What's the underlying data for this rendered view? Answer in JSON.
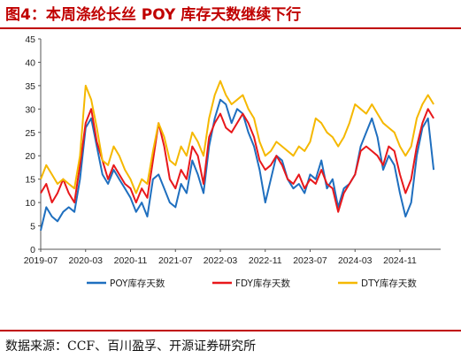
{
  "title": "图4：本周涤纶长丝 POY 库存天数继续下行",
  "source": "数据来源：CCF、百川盈孚、开源证券研究所",
  "chart_data": {
    "type": "line",
    "ylim": [
      0,
      45
    ],
    "yticks": [
      0,
      5,
      10,
      15,
      20,
      25,
      30,
      35,
      40,
      45
    ],
    "xticks": [
      "2019-07",
      "2020-03",
      "2020-11",
      "2021-07",
      "2022-03",
      "2022-11",
      "2023-07",
      "2024-03",
      "2024-11"
    ],
    "legend_position": "bottom",
    "series": [
      {
        "name": "POY库存天数",
        "color": "#1f6fbf",
        "points": [
          [
            "2019-07",
            4
          ],
          [
            "2019-08",
            9
          ],
          [
            "2019-09",
            7
          ],
          [
            "2019-10",
            6
          ],
          [
            "2019-11",
            8
          ],
          [
            "2019-12",
            9
          ],
          [
            "2020-01",
            8
          ],
          [
            "2020-02",
            15
          ],
          [
            "2020-03",
            26
          ],
          [
            "2020-04",
            28
          ],
          [
            "2020-05",
            22
          ],
          [
            "2020-06",
            16
          ],
          [
            "2020-07",
            14
          ],
          [
            "2020-08",
            17
          ],
          [
            "2020-09",
            15
          ],
          [
            "2020-10",
            13
          ],
          [
            "2020-11",
            11
          ],
          [
            "2020-12",
            8
          ],
          [
            "2021-01",
            10
          ],
          [
            "2021-02",
            7
          ],
          [
            "2021-03",
            15
          ],
          [
            "2021-04",
            16
          ],
          [
            "2021-05",
            13
          ],
          [
            "2021-06",
            10
          ],
          [
            "2021-07",
            9
          ],
          [
            "2021-08",
            14
          ],
          [
            "2021-09",
            12
          ],
          [
            "2021-10",
            19
          ],
          [
            "2021-11",
            16
          ],
          [
            "2021-12",
            12
          ],
          [
            "2022-01",
            22
          ],
          [
            "2022-02",
            28
          ],
          [
            "2022-03",
            32
          ],
          [
            "2022-04",
            31
          ],
          [
            "2022-05",
            27
          ],
          [
            "2022-06",
            30
          ],
          [
            "2022-07",
            29
          ],
          [
            "2022-08",
            25
          ],
          [
            "2022-09",
            22
          ],
          [
            "2022-10",
            17
          ],
          [
            "2022-11",
            10
          ],
          [
            "2022-12",
            15
          ],
          [
            "2023-01",
            20
          ],
          [
            "2023-02",
            19
          ],
          [
            "2023-03",
            15
          ],
          [
            "2023-04",
            13
          ],
          [
            "2023-05",
            14
          ],
          [
            "2023-06",
            12
          ],
          [
            "2023-07",
            16
          ],
          [
            "2023-08",
            15
          ],
          [
            "2023-09",
            19
          ],
          [
            "2023-10",
            13
          ],
          [
            "2023-11",
            15
          ],
          [
            "2023-12",
            9
          ],
          [
            "2024-01",
            13
          ],
          [
            "2024-02",
            14
          ],
          [
            "2024-03",
            16
          ],
          [
            "2024-04",
            22
          ],
          [
            "2024-05",
            25
          ],
          [
            "2024-06",
            28
          ],
          [
            "2024-07",
            24
          ],
          [
            "2024-08",
            17
          ],
          [
            "2024-09",
            20
          ],
          [
            "2024-10",
            18
          ],
          [
            "2024-11",
            12
          ],
          [
            "2024-12",
            7
          ],
          [
            "2025-01",
            10
          ],
          [
            "2025-02",
            20
          ],
          [
            "2025-03",
            26
          ],
          [
            "2025-04",
            28
          ],
          [
            "2025-05",
            17
          ]
        ]
      },
      {
        "name": "FDY库存天数",
        "color": "#e8181b",
        "points": [
          [
            "2019-07",
            12
          ],
          [
            "2019-08",
            14
          ],
          [
            "2019-09",
            10
          ],
          [
            "2019-10",
            12
          ],
          [
            "2019-11",
            15
          ],
          [
            "2019-12",
            12
          ],
          [
            "2020-01",
            10
          ],
          [
            "2020-02",
            18
          ],
          [
            "2020-03",
            27
          ],
          [
            "2020-04",
            30
          ],
          [
            "2020-05",
            23
          ],
          [
            "2020-06",
            19
          ],
          [
            "2020-07",
            15
          ],
          [
            "2020-08",
            18
          ],
          [
            "2020-09",
            16
          ],
          [
            "2020-10",
            14
          ],
          [
            "2020-11",
            13
          ],
          [
            "2020-12",
            10
          ],
          [
            "2021-01",
            13
          ],
          [
            "2021-02",
            11
          ],
          [
            "2021-03",
            19
          ],
          [
            "2021-04",
            27
          ],
          [
            "2021-05",
            22
          ],
          [
            "2021-06",
            15
          ],
          [
            "2021-07",
            13
          ],
          [
            "2021-08",
            17
          ],
          [
            "2021-09",
            15
          ],
          [
            "2021-10",
            22
          ],
          [
            "2021-11",
            20
          ],
          [
            "2021-12",
            14
          ],
          [
            "2022-01",
            24
          ],
          [
            "2022-02",
            27
          ],
          [
            "2022-03",
            29
          ],
          [
            "2022-04",
            26
          ],
          [
            "2022-05",
            25
          ],
          [
            "2022-06",
            27
          ],
          [
            "2022-07",
            29
          ],
          [
            "2022-08",
            27
          ],
          [
            "2022-09",
            24
          ],
          [
            "2022-10",
            19
          ],
          [
            "2022-11",
            17
          ],
          [
            "2022-12",
            18
          ],
          [
            "2023-01",
            20
          ],
          [
            "2023-02",
            18
          ],
          [
            "2023-03",
            15
          ],
          [
            "2023-04",
            14
          ],
          [
            "2023-05",
            16
          ],
          [
            "2023-06",
            13
          ],
          [
            "2023-07",
            15
          ],
          [
            "2023-08",
            14
          ],
          [
            "2023-09",
            17
          ],
          [
            "2023-10",
            14
          ],
          [
            "2023-11",
            13
          ],
          [
            "2023-12",
            8
          ],
          [
            "2024-01",
            12
          ],
          [
            "2024-02",
            14
          ],
          [
            "2024-03",
            16
          ],
          [
            "2024-04",
            21
          ],
          [
            "2024-05",
            22
          ],
          [
            "2024-06",
            21
          ],
          [
            "2024-07",
            20
          ],
          [
            "2024-08",
            18
          ],
          [
            "2024-09",
            22
          ],
          [
            "2024-10",
            21
          ],
          [
            "2024-11",
            16
          ],
          [
            "2024-12",
            12
          ],
          [
            "2025-01",
            15
          ],
          [
            "2025-02",
            22
          ],
          [
            "2025-03",
            27
          ],
          [
            "2025-04",
            30
          ],
          [
            "2025-05",
            28
          ]
        ]
      },
      {
        "name": "DTY库存天数",
        "color": "#f5b800",
        "points": [
          [
            "2019-07",
            15
          ],
          [
            "2019-08",
            18
          ],
          [
            "2019-09",
            16
          ],
          [
            "2019-10",
            14
          ],
          [
            "2019-11",
            15
          ],
          [
            "2019-12",
            14
          ],
          [
            "2020-01",
            13
          ],
          [
            "2020-02",
            20
          ],
          [
            "2020-03",
            35
          ],
          [
            "2020-04",
            32
          ],
          [
            "2020-05",
            26
          ],
          [
            "2020-06",
            19
          ],
          [
            "2020-07",
            18
          ],
          [
            "2020-08",
            22
          ],
          [
            "2020-09",
            20
          ],
          [
            "2020-10",
            17
          ],
          [
            "2020-11",
            15
          ],
          [
            "2020-12",
            12
          ],
          [
            "2021-01",
            15
          ],
          [
            "2021-02",
            14
          ],
          [
            "2021-03",
            21
          ],
          [
            "2021-04",
            27
          ],
          [
            "2021-05",
            24
          ],
          [
            "2021-06",
            19
          ],
          [
            "2021-07",
            18
          ],
          [
            "2021-08",
            22
          ],
          [
            "2021-09",
            20
          ],
          [
            "2021-10",
            25
          ],
          [
            "2021-11",
            23
          ],
          [
            "2021-12",
            20
          ],
          [
            "2022-01",
            28
          ],
          [
            "2022-02",
            33
          ],
          [
            "2022-03",
            36
          ],
          [
            "2022-04",
            33
          ],
          [
            "2022-05",
            31
          ],
          [
            "2022-06",
            32
          ],
          [
            "2022-07",
            33
          ],
          [
            "2022-08",
            30
          ],
          [
            "2022-09",
            28
          ],
          [
            "2022-10",
            23
          ],
          [
            "2022-11",
            20
          ],
          [
            "2022-12",
            21
          ],
          [
            "2023-01",
            23
          ],
          [
            "2023-02",
            22
          ],
          [
            "2023-03",
            21
          ],
          [
            "2023-04",
            20
          ],
          [
            "2023-05",
            22
          ],
          [
            "2023-06",
            21
          ],
          [
            "2023-07",
            23
          ],
          [
            "2023-08",
            28
          ],
          [
            "2023-09",
            27
          ],
          [
            "2023-10",
            25
          ],
          [
            "2023-11",
            24
          ],
          [
            "2023-12",
            22
          ],
          [
            "2024-01",
            24
          ],
          [
            "2024-02",
            27
          ],
          [
            "2024-03",
            31
          ],
          [
            "2024-04",
            30
          ],
          [
            "2024-05",
            29
          ],
          [
            "2024-06",
            31
          ],
          [
            "2024-07",
            29
          ],
          [
            "2024-08",
            27
          ],
          [
            "2024-09",
            26
          ],
          [
            "2024-10",
            25
          ],
          [
            "2024-11",
            22
          ],
          [
            "2024-12",
            20
          ],
          [
            "2025-01",
            22
          ],
          [
            "2025-02",
            28
          ],
          [
            "2025-03",
            31
          ],
          [
            "2025-04",
            33
          ],
          [
            "2025-05",
            31
          ]
        ]
      }
    ]
  }
}
